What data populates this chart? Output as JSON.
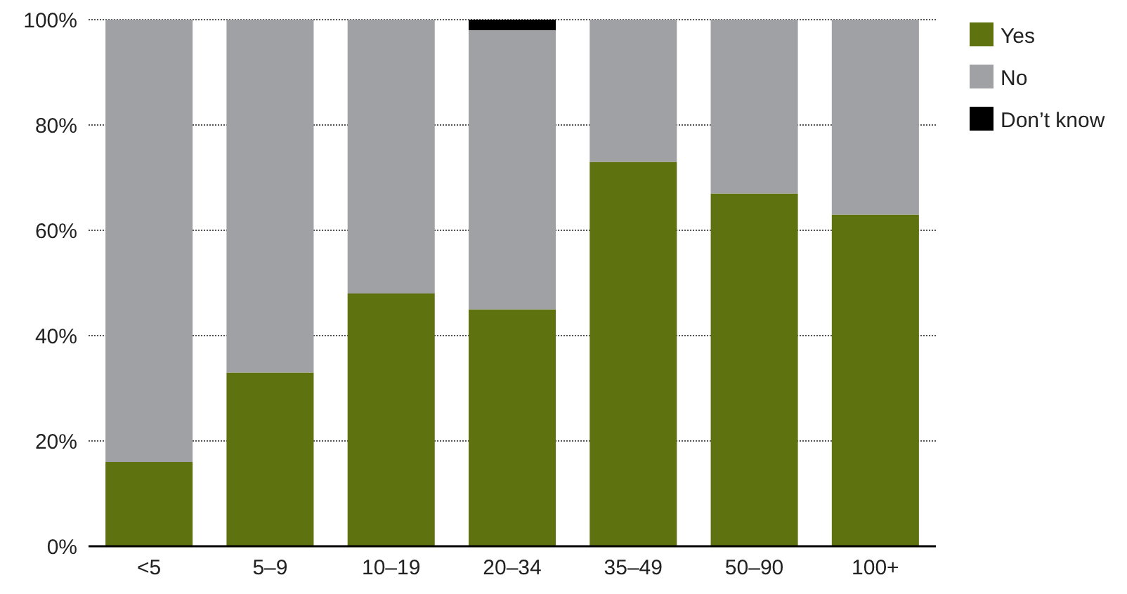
{
  "chart_data": {
    "type": "bar",
    "stacked": true,
    "categories": [
      "<5",
      "5–9",
      "10–19",
      "20–34",
      "35–49",
      "50–90",
      "100+"
    ],
    "series": [
      {
        "name": "Yes",
        "color": "#5e7210",
        "values": [
          16,
          33,
          48,
          45,
          73,
          67,
          63
        ]
      },
      {
        "name": "No",
        "color": "#a0a1a5",
        "values": [
          84,
          67,
          52,
          53,
          27,
          33,
          37
        ]
      },
      {
        "name": "Don’t know",
        "color": "#000000",
        "values": [
          0,
          0,
          0,
          2,
          0,
          0,
          0
        ]
      }
    ],
    "ylim": [
      0,
      100
    ],
    "yticks": [
      {
        "value": 0,
        "label": "0%"
      },
      {
        "value": 20,
        "label": "20%"
      },
      {
        "value": 40,
        "label": "40%"
      },
      {
        "value": 60,
        "label": "60%"
      },
      {
        "value": 80,
        "label": "80%"
      },
      {
        "value": 100,
        "label": "100%"
      }
    ],
    "grid": "y",
    "legend": "top right"
  }
}
